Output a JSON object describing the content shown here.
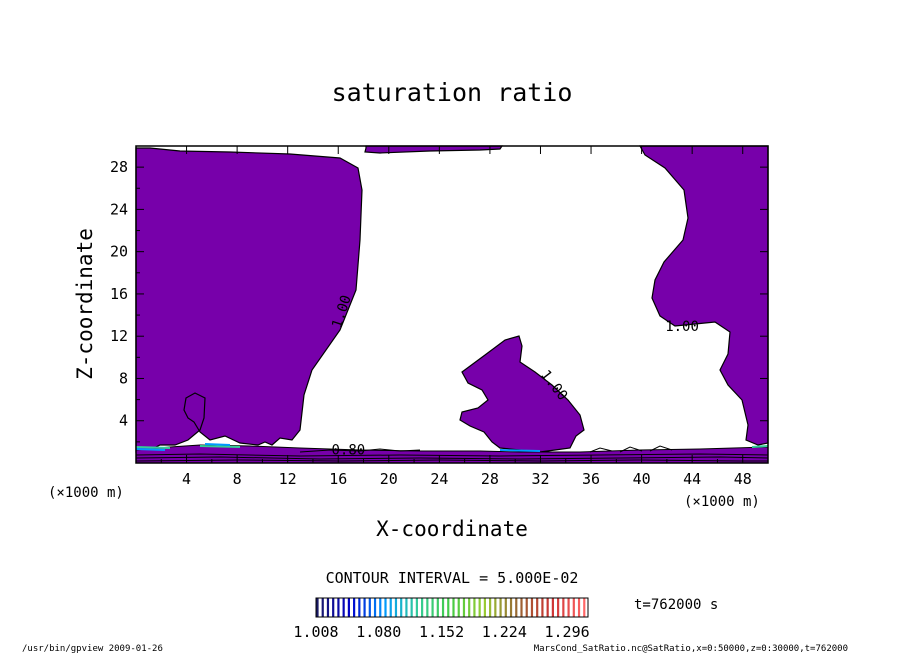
{
  "chart_data": {
    "type": "heatmap",
    "title": "saturation ratio",
    "xlabel": "X-coordinate",
    "ylabel": "Z-coordinate",
    "x_unit": "(×1000 m)",
    "y_unit": "(×1000 m)",
    "xlim": [
      0,
      50
    ],
    "ylim": [
      0,
      30
    ],
    "x_ticks": [
      4,
      8,
      12,
      16,
      20,
      24,
      28,
      32,
      36,
      40,
      44,
      48
    ],
    "y_ticks": [
      4,
      8,
      12,
      16,
      20,
      24,
      28
    ],
    "contour_labels": [
      {
        "text": "1.00",
        "x": 16.6,
        "y": 14.2,
        "rotate": -72
      },
      {
        "text": "1.00",
        "x": 32.8,
        "y": 7.1,
        "rotate": 52
      },
      {
        "text": "1.00",
        "x": 43.2,
        "y": 12.5,
        "rotate": 0
      },
      {
        "text": "0.80",
        "x": 16.8,
        "y": 0.8,
        "rotate": 0
      }
    ],
    "contour_interval_text": "CONTOUR INTERVAL = 5.000E-02",
    "time_text": "t=762000  s",
    "colorbar": {
      "labels": [
        "1.008",
        "1.080",
        "1.152",
        "1.224",
        "1.296"
      ],
      "min": 1.008,
      "max": 1.32,
      "colors": [
        "#1a1a66",
        "#0000cc",
        "#0099ff",
        "#33cc99",
        "#44cc44",
        "#99cc33",
        "#996633",
        "#cc3333",
        "#ff6666"
      ]
    },
    "fill_color": "#7700aa"
  },
  "footer": {
    "left": "/usr/bin/gpview   2009-01-26",
    "right": "MarsCond_SatRatio.nc@SatRatio,x=0:50000,z=0:30000,t=762000"
  }
}
